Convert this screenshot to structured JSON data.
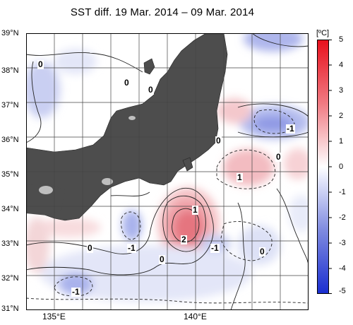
{
  "title": "SST diff. 19 Mar. 2014 – 09 Mar. 2014",
  "lat_labels": [
    "39°N",
    "38°N",
    "37°N",
    "36°N",
    "35°N",
    "34°N",
    "33°N",
    "32°N",
    "31°N"
  ],
  "lon_labels": [
    "135°E",
    "140°E"
  ],
  "colorbar": {
    "unit": "[ºC]",
    "labels": [
      "5",
      "4",
      "3",
      "2",
      "1",
      "0",
      "-1",
      "-2",
      "-3",
      "-4",
      "-5"
    ]
  },
  "contour_labels": [
    "0",
    "0",
    "0",
    "0",
    "0",
    "-1",
    "0",
    "-1",
    "2",
    "1",
    "1",
    "0",
    "-1",
    "0",
    "-1",
    "-1"
  ],
  "colors": {
    "land": "#4d4d4d",
    "lake": "#bfbfbf",
    "positive": "#e8323c",
    "negative": "#2a3ecf"
  }
}
